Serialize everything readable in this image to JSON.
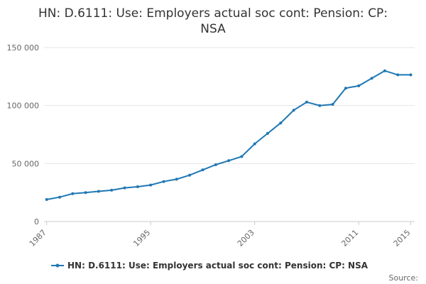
{
  "chart_data": {
    "type": "line",
    "title": "HN: D.6111: Use: Employers actual soc cont: Pension: CP: NSA",
    "title_lines": [
      "HN: D.6111: Use: Employers actual soc cont: Pension: CP:",
      "NSA"
    ],
    "xlabel": "",
    "ylabel": "",
    "x": [
      1987,
      1988,
      1989,
      1990,
      1991,
      1992,
      1993,
      1994,
      1995,
      1996,
      1997,
      1998,
      1999,
      2000,
      2001,
      2002,
      2003,
      2004,
      2005,
      2006,
      2007,
      2008,
      2009,
      2010,
      2011,
      2012,
      2013,
      2014,
      2015
    ],
    "series": [
      {
        "name": "HN: D.6111: Use: Employers actual soc cont: Pension: CP: NSA",
        "values": [
          19000,
          21000,
          24000,
          25000,
          26000,
          27000,
          29000,
          30000,
          31500,
          34500,
          36500,
          40000,
          44500,
          49000,
          52500,
          56000,
          67000,
          76000,
          85000,
          96000,
          103000,
          100000,
          101000,
          115000,
          117000,
          123500,
          130000,
          126500,
          126500
        ]
      }
    ],
    "ylim": [
      0,
      150000
    ],
    "y_ticks": [
      0,
      50000,
      100000,
      150000
    ],
    "y_tick_labels": [
      "0",
      "50 000",
      "100 000",
      "150 000"
    ],
    "x_ticks": [
      1987,
      1995,
      2003,
      2011,
      2015
    ],
    "x_tick_labels": [
      "1987",
      "1995",
      "2003",
      "2011",
      "2015"
    ],
    "grid": true,
    "legend": "bottom-center",
    "credit": "Source:",
    "colors": {
      "series": "#1f78b4"
    }
  }
}
